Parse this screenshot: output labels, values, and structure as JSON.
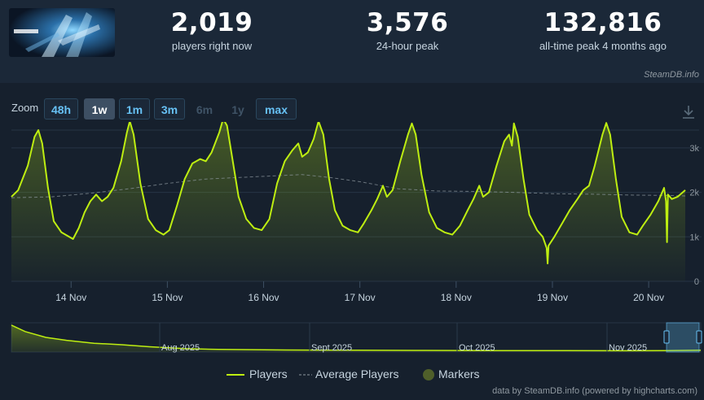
{
  "stats": [
    {
      "value": "2,019",
      "label": "players right now"
    },
    {
      "value": "3,576",
      "label": "24-hour peak"
    },
    {
      "value": "132,816",
      "label": "all-time peak 4 months ago"
    }
  ],
  "brand": "SteamDB.info",
  "zoom": {
    "label": "Zoom",
    "buttons": [
      {
        "label": "48h",
        "state": "enabled"
      },
      {
        "label": "1w",
        "state": "selected"
      },
      {
        "label": "1m",
        "state": "enabled"
      },
      {
        "label": "3m",
        "state": "enabled"
      },
      {
        "label": "6m",
        "state": "disabled"
      },
      {
        "label": "1y",
        "state": "disabled"
      },
      {
        "label": "max",
        "state": "enabled"
      }
    ]
  },
  "legend": {
    "players": "Players",
    "average": "Average Players",
    "markers": "Markers"
  },
  "credit": "data by SteamDB.info (powered by highcharts.com)",
  "colors": {
    "players": "#beee11",
    "average": "#8f98a0",
    "accent": "#67c1f5",
    "background": "#16202d"
  },
  "chart_data": {
    "type": "line",
    "xlabel": "",
    "ylabel": "",
    "ylim": [
      0,
      3400
    ],
    "ytick_labels": [
      "0",
      "1k",
      "2k",
      "3k"
    ],
    "yticks": [
      0,
      1000,
      2000,
      3000
    ],
    "xtick_labels": [
      "14 Nov",
      "15 Nov",
      "16 Nov",
      "17 Nov",
      "18 Nov",
      "19 Nov",
      "20 Nov"
    ],
    "xticks": [
      1,
      2,
      3,
      4,
      5,
      6,
      7
    ],
    "xlim": [
      0.38,
      7.38
    ],
    "grid": true,
    "legend_position": "bottom",
    "series": [
      {
        "name": "Players",
        "points": [
          [
            0.38,
            1900
          ],
          [
            0.45,
            2050
          ],
          [
            0.55,
            2600
          ],
          [
            0.62,
            3250
          ],
          [
            0.66,
            3400
          ],
          [
            0.7,
            3100
          ],
          [
            0.76,
            2100
          ],
          [
            0.82,
            1350
          ],
          [
            0.9,
            1100
          ],
          [
            0.98,
            1000
          ],
          [
            1.02,
            950
          ],
          [
            1.08,
            1200
          ],
          [
            1.14,
            1550
          ],
          [
            1.2,
            1800
          ],
          [
            1.26,
            1950
          ],
          [
            1.32,
            1800
          ],
          [
            1.38,
            1900
          ],
          [
            1.44,
            2100
          ],
          [
            1.52,
            2700
          ],
          [
            1.58,
            3350
          ],
          [
            1.61,
            3600
          ],
          [
            1.65,
            3300
          ],
          [
            1.72,
            2200
          ],
          [
            1.8,
            1400
          ],
          [
            1.88,
            1150
          ],
          [
            1.96,
            1050
          ],
          [
            2.02,
            1150
          ],
          [
            2.1,
            1700
          ],
          [
            2.18,
            2300
          ],
          [
            2.26,
            2650
          ],
          [
            2.34,
            2750
          ],
          [
            2.4,
            2700
          ],
          [
            2.46,
            2900
          ],
          [
            2.54,
            3350
          ],
          [
            2.58,
            3650
          ],
          [
            2.62,
            3500
          ],
          [
            2.68,
            2700
          ],
          [
            2.74,
            1900
          ],
          [
            2.82,
            1400
          ],
          [
            2.9,
            1200
          ],
          [
            2.98,
            1150
          ],
          [
            3.06,
            1400
          ],
          [
            3.14,
            2200
          ],
          [
            3.22,
            2700
          ],
          [
            3.3,
            2950
          ],
          [
            3.36,
            3100
          ],
          [
            3.4,
            2800
          ],
          [
            3.46,
            2900
          ],
          [
            3.52,
            3200
          ],
          [
            3.57,
            3600
          ],
          [
            3.62,
            3300
          ],
          [
            3.68,
            2300
          ],
          [
            3.74,
            1600
          ],
          [
            3.82,
            1250
          ],
          [
            3.9,
            1150
          ],
          [
            3.98,
            1100
          ],
          [
            4.04,
            1300
          ],
          [
            4.12,
            1600
          ],
          [
            4.18,
            1850
          ],
          [
            4.24,
            2150
          ],
          [
            4.28,
            1900
          ],
          [
            4.34,
            2050
          ],
          [
            4.42,
            2700
          ],
          [
            4.5,
            3300
          ],
          [
            4.54,
            3550
          ],
          [
            4.58,
            3300
          ],
          [
            4.64,
            2400
          ],
          [
            4.72,
            1550
          ],
          [
            4.8,
            1200
          ],
          [
            4.88,
            1100
          ],
          [
            4.96,
            1050
          ],
          [
            5.04,
            1250
          ],
          [
            5.12,
            1600
          ],
          [
            5.18,
            1850
          ],
          [
            5.24,
            2150
          ],
          [
            5.28,
            1900
          ],
          [
            5.34,
            2000
          ],
          [
            5.42,
            2600
          ],
          [
            5.5,
            3150
          ],
          [
            5.55,
            3300
          ],
          [
            5.58,
            3050
          ],
          [
            5.6,
            3550
          ],
          [
            5.64,
            3250
          ],
          [
            5.7,
            2300
          ],
          [
            5.76,
            1500
          ],
          [
            5.84,
            1150
          ],
          [
            5.9,
            1000
          ],
          [
            5.94,
            750
          ],
          [
            5.95,
            400
          ],
          [
            5.96,
            800
          ],
          [
            6.02,
            1000
          ],
          [
            6.1,
            1300
          ],
          [
            6.18,
            1600
          ],
          [
            6.26,
            1850
          ],
          [
            6.32,
            2050
          ],
          [
            6.38,
            2150
          ],
          [
            6.44,
            2600
          ],
          [
            6.52,
            3300
          ],
          [
            6.56,
            3560
          ],
          [
            6.6,
            3300
          ],
          [
            6.66,
            2300
          ],
          [
            6.72,
            1450
          ],
          [
            6.8,
            1100
          ],
          [
            6.88,
            1050
          ],
          [
            6.94,
            1250
          ],
          [
            7.02,
            1500
          ],
          [
            7.1,
            1800
          ],
          [
            7.16,
            2100
          ],
          [
            7.18,
            1800
          ],
          [
            7.19,
            880
          ],
          [
            7.2,
            1950
          ],
          [
            7.24,
            1850
          ],
          [
            7.3,
            1900
          ],
          [
            7.38,
            2050
          ]
        ]
      },
      {
        "name": "Average Players",
        "points": [
          [
            0.38,
            1880
          ],
          [
            0.8,
            1900
          ],
          [
            1.2,
            1980
          ],
          [
            1.6,
            2080
          ],
          [
            2.0,
            2200
          ],
          [
            2.4,
            2300
          ],
          [
            2.8,
            2340
          ],
          [
            3.2,
            2380
          ],
          [
            3.4,
            2400
          ],
          [
            3.7,
            2330
          ],
          [
            4.0,
            2240
          ],
          [
            4.4,
            2080
          ],
          [
            4.8,
            2030
          ],
          [
            5.2,
            2020
          ],
          [
            5.6,
            2000
          ],
          [
            6.0,
            1970
          ],
          [
            6.4,
            1960
          ],
          [
            6.8,
            1940
          ],
          [
            7.2,
            1930
          ],
          [
            7.38,
            1920
          ]
        ]
      }
    ],
    "navigator": {
      "xtick_labels": [
        "Aug 2025",
        "Sept 2025",
        "Oct 2025",
        "Nov 2025"
      ],
      "values": [
        [
          0.0,
          0.92
        ],
        [
          0.02,
          0.7
        ],
        [
          0.05,
          0.5
        ],
        [
          0.08,
          0.4
        ],
        [
          0.12,
          0.3
        ],
        [
          0.16,
          0.25
        ],
        [
          0.2,
          0.18
        ],
        [
          0.25,
          0.12
        ],
        [
          0.3,
          0.09
        ],
        [
          0.4,
          0.07
        ],
        [
          0.5,
          0.06
        ],
        [
          0.6,
          0.055
        ],
        [
          0.7,
          0.05
        ],
        [
          0.8,
          0.05
        ],
        [
          0.9,
          0.045
        ],
        [
          0.95,
          0.05
        ],
        [
          1.0,
          0.06
        ]
      ]
    }
  }
}
